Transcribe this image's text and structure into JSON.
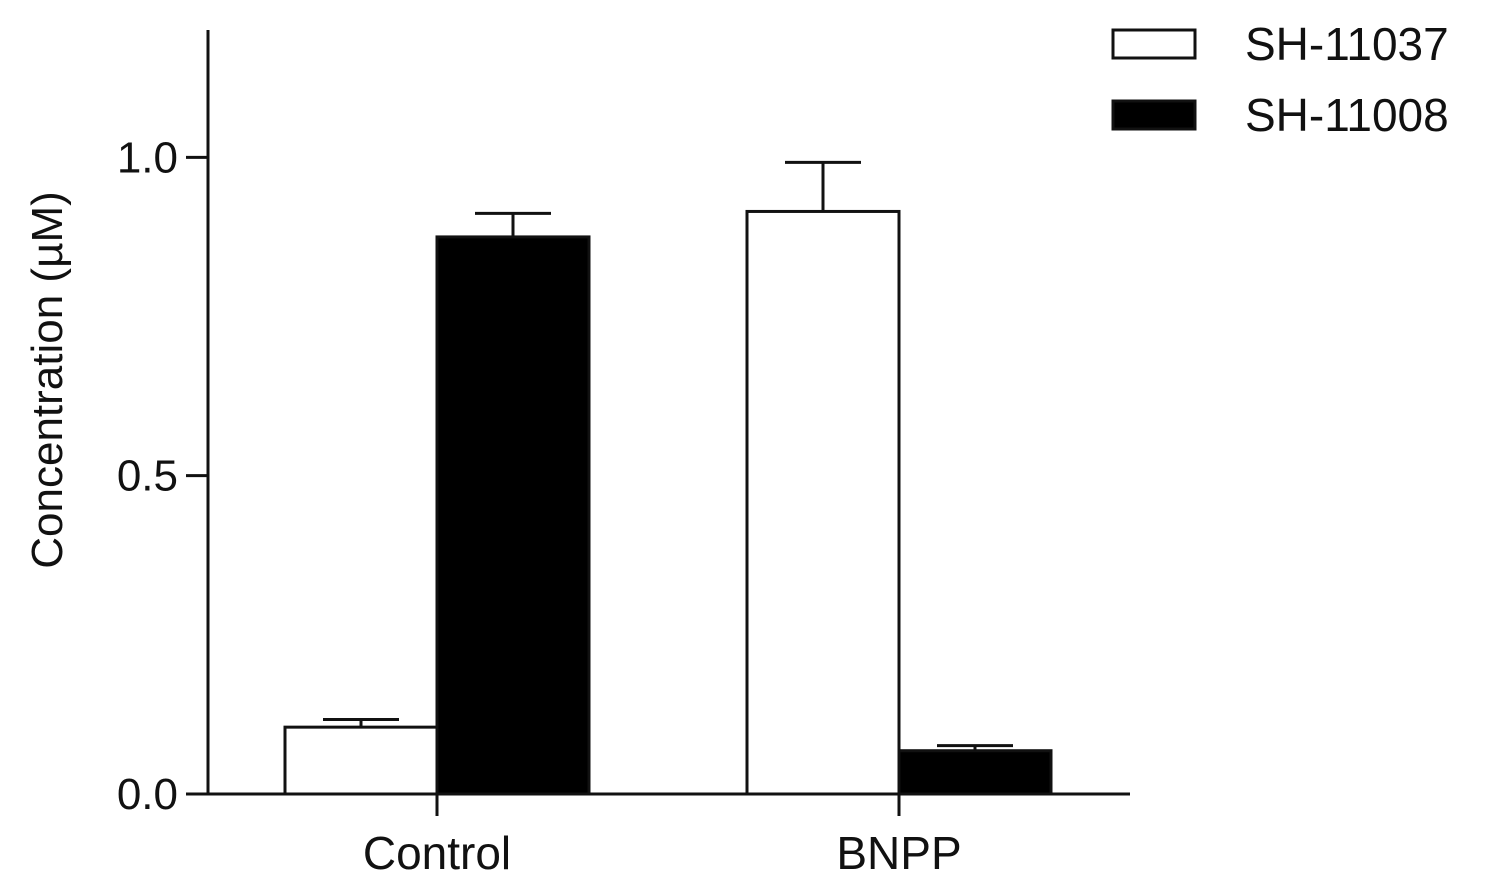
{
  "chart_data": {
    "type": "bar",
    "title": "",
    "xlabel": "",
    "ylabel": "Concentration (µM)",
    "ylim": [
      0,
      1.2
    ],
    "yticks": [
      0.0,
      0.5,
      1.0
    ],
    "ytick_labels": [
      "0.0",
      "0.5",
      "1.0"
    ],
    "categories": [
      "Control",
      "BNPP"
    ],
    "series": [
      {
        "name": "SH-11037",
        "values": [
          0.105,
          0.915
        ],
        "errors": [
          0.012,
          0.077
        ],
        "color": "#ffffff"
      },
      {
        "name": "SH-11008",
        "values": [
          0.875,
          0.068
        ],
        "errors": [
          0.037,
          0.008
        ],
        "color": "#000000"
      }
    ],
    "legend": "top-right",
    "grid": false,
    "error_bars": "upper"
  }
}
